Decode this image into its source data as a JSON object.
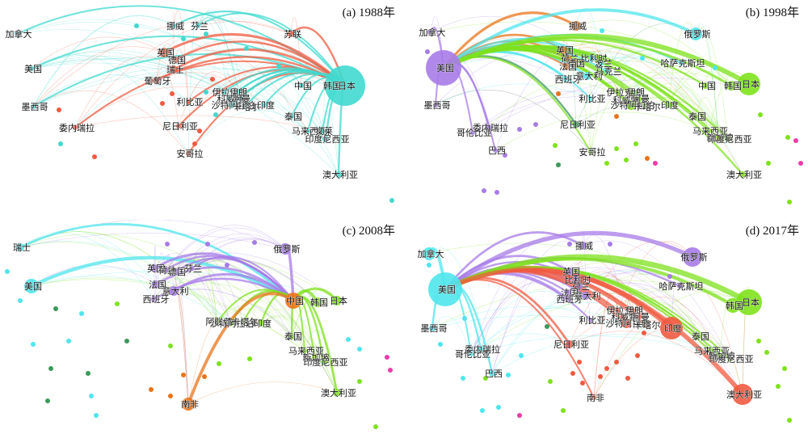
{
  "colors": {
    "teal": "#40d9cf",
    "red": "#f05a40",
    "orange": "#e8741a",
    "purple": "#a77be8",
    "green": "#7ee21c",
    "cyan": "#4fe6ec",
    "darkgreen": "#3a9a5a",
    "pink": "#ee3aa8"
  },
  "panels": [
    {
      "id": "a",
      "caption": "(a) 1988年",
      "nodes": [
        {
          "label": "加拿大",
          "col": "teal",
          "r": 3
        },
        {
          "label": "美国",
          "col": "teal",
          "r": 3
        },
        {
          "label": "墨西哥",
          "col": "teal",
          "r": 3
        },
        {
          "label": "委内瑞拉",
          "col": "red",
          "r": 3
        },
        {
          "label": "挪威",
          "col": "teal",
          "r": 3
        },
        {
          "label": "芬兰",
          "col": "teal",
          "r": 3
        },
        {
          "label": "苏联",
          "col": "red",
          "r": 4
        },
        {
          "label": "英国",
          "col": "red",
          "r": 6
        },
        {
          "label": "德国",
          "col": "red",
          "r": 4
        },
        {
          "label": "瑞士",
          "col": "red",
          "r": 5
        },
        {
          "label": "葡萄牙",
          "col": "red",
          "r": 4
        },
        {
          "label": "利比亚",
          "col": "red",
          "r": 3
        },
        {
          "label": "尼日利亚",
          "col": "red",
          "r": 3
        },
        {
          "label": "安哥拉",
          "col": "red",
          "r": 3
        },
        {
          "label": "伊拉克",
          "col": "teal",
          "r": 3
        },
        {
          "label": "伊朗",
          "col": "teal",
          "r": 3
        },
        {
          "label": "科威特",
          "col": "teal",
          "r": 3
        },
        {
          "label": "沙特阿拉伯",
          "col": "teal",
          "r": 4
        },
        {
          "label": "阿曼",
          "col": "teal",
          "r": 3
        },
        {
          "label": "卡塔尔",
          "col": "teal",
          "r": 3
        },
        {
          "label": "印度",
          "col": "teal",
          "r": 3
        },
        {
          "label": "中国",
          "col": "teal",
          "r": 3
        },
        {
          "label": "韩国",
          "col": "teal",
          "r": 4
        },
        {
          "label": "日本",
          "col": "teal",
          "r": 25
        },
        {
          "label": "泰国",
          "col": "teal",
          "r": 3
        },
        {
          "label": "马来西亚",
          "col": "teal",
          "r": 3
        },
        {
          "label": "文莱",
          "col": "teal",
          "r": 3
        },
        {
          "label": "印度尼西亚",
          "col": "teal",
          "r": 4
        },
        {
          "label": "澳大利亚",
          "col": "teal",
          "r": 4
        }
      ]
    },
    {
      "id": "b",
      "caption": "(b) 1998年",
      "nodes": [
        {
          "label": "加拿大",
          "col": "purple",
          "r": 4
        },
        {
          "label": "美国",
          "col": "purple",
          "r": 22
        },
        {
          "label": "墨西哥",
          "col": "purple",
          "r": 3
        },
        {
          "label": "哥伦比亚",
          "col": "purple",
          "r": 3
        },
        {
          "label": "委内瑞拉",
          "col": "purple",
          "r": 4
        },
        {
          "label": "巴西",
          "col": "purple",
          "r": 3
        },
        {
          "label": "挪威",
          "col": "orange",
          "r": 6
        },
        {
          "label": "英国",
          "col": "orange",
          "r": 5
        },
        {
          "label": "荷兰",
          "col": "orange",
          "r": 4
        },
        {
          "label": "德国",
          "col": "orange",
          "r": 4
        },
        {
          "label": "比利时",
          "col": "cyan",
          "r": 4
        },
        {
          "label": "波兰",
          "col": "cyan",
          "r": 3
        },
        {
          "label": "马克兰",
          "col": "cyan",
          "r": 3
        },
        {
          "label": "法国",
          "col": "orange",
          "r": 4
        },
        {
          "label": "西班牙",
          "col": "cyan",
          "r": 4
        },
        {
          "label": "意大利",
          "col": "cyan",
          "r": 5
        },
        {
          "label": "俄罗斯",
          "col": "cyan",
          "r": 8
        },
        {
          "label": "哈萨克斯坦",
          "col": "cyan",
          "r": 3
        },
        {
          "label": "利比亚",
          "col": "cyan",
          "r": 3
        },
        {
          "label": "尼日利亚",
          "col": "darkgreen",
          "r": 4
        },
        {
          "label": "安哥拉",
          "col": "green",
          "r": 3
        },
        {
          "label": "伊拉克",
          "col": "green",
          "r": 3
        },
        {
          "label": "伊朗",
          "col": "green",
          "r": 3
        },
        {
          "label": "科威特",
          "col": "green",
          "r": 3
        },
        {
          "label": "沙特阿拉伯",
          "col": "green",
          "r": 6
        },
        {
          "label": "阿曼",
          "col": "green",
          "r": 3
        },
        {
          "label": "卡塔尔",
          "col": "green",
          "r": 3
        },
        {
          "label": "印度",
          "col": "green",
          "r": 4
        },
        {
          "label": "中国",
          "col": "green",
          "r": 4
        },
        {
          "label": "韩国",
          "col": "green",
          "r": 6
        },
        {
          "label": "日本",
          "col": "green",
          "r": 14
        },
        {
          "label": "泰国",
          "col": "green",
          "r": 3
        },
        {
          "label": "马来西亚",
          "col": "green",
          "r": 3
        },
        {
          "label": "新加坡",
          "col": "green",
          "r": 3
        },
        {
          "label": "印度尼西亚",
          "col": "green",
          "r": 4
        },
        {
          "label": "澳大利亚",
          "col": "green",
          "r": 4
        }
      ]
    },
    {
      "id": "c",
      "caption": "(c) 2008年",
      "nodes": [
        {
          "label": "瑞士",
          "col": "cyan",
          "r": 5
        },
        {
          "label": "美国",
          "col": "cyan",
          "r": 9
        },
        {
          "label": "英国",
          "col": "purple",
          "r": 5
        },
        {
          "label": "荷兰",
          "col": "purple",
          "r": 4
        },
        {
          "label": "德国",
          "col": "purple",
          "r": 4
        },
        {
          "label": "芬兰",
          "col": "purple",
          "r": 3
        },
        {
          "label": "法国",
          "col": "purple",
          "r": 5
        },
        {
          "label": "意大利",
          "col": "purple",
          "r": 6
        },
        {
          "label": "西班牙",
          "col": "purple",
          "r": 4
        },
        {
          "label": "俄罗斯",
          "col": "purple",
          "r": 7
        },
        {
          "label": "阿联酋",
          "col": "green",
          "r": 3
        },
        {
          "label": "沙特阿拉伯",
          "col": "green",
          "r": 4
        },
        {
          "label": "卡塔尔",
          "col": "green",
          "r": 3
        },
        {
          "label": "印度",
          "col": "green",
          "r": 4
        },
        {
          "label": "中国",
          "col": "orange",
          "r": 10
        },
        {
          "label": "韩国",
          "col": "green",
          "r": 6
        },
        {
          "label": "日本",
          "col": "green",
          "r": 6
        },
        {
          "label": "泰国",
          "col": "green",
          "r": 4
        },
        {
          "label": "马来西亚",
          "col": "green",
          "r": 3
        },
        {
          "label": "新加坡",
          "col": "green",
          "r": 3
        },
        {
          "label": "印度尼西亚",
          "col": "green",
          "r": 4
        },
        {
          "label": "澳大利亚",
          "col": "green",
          "r": 5
        },
        {
          "label": "南非",
          "col": "orange",
          "r": 8
        }
      ]
    },
    {
      "id": "d",
      "caption": "(d) 2017年",
      "nodes": [
        {
          "label": "加拿大",
          "col": "cyan",
          "r": 8
        },
        {
          "label": "美国",
          "col": "cyan",
          "r": 21
        },
        {
          "label": "墨西哥",
          "col": "cyan",
          "r": 4
        },
        {
          "label": "委内瑞拉",
          "col": "cyan",
          "r": 4
        },
        {
          "label": "哥伦比亚",
          "col": "cyan",
          "r": 3
        },
        {
          "label": "巴西",
          "col": "cyan",
          "r": 4
        },
        {
          "label": "挪威",
          "col": "purple",
          "r": 5
        },
        {
          "label": "英国",
          "col": "purple",
          "r": 5
        },
        {
          "label": "比利时",
          "col": "purple",
          "r": 4
        },
        {
          "label": "荷兰",
          "col": "purple",
          "r": 4
        },
        {
          "label": "法国",
          "col": "purple",
          "r": 4
        },
        {
          "label": "西班牙",
          "col": "purple",
          "r": 4
        },
        {
          "label": "意大利",
          "col": "purple",
          "r": 5
        },
        {
          "label": "俄罗斯",
          "col": "purple",
          "r": 12
        },
        {
          "label": "哈萨克斯坦",
          "col": "purple",
          "r": 3
        },
        {
          "label": "利比亚",
          "col": "purple",
          "r": 3
        },
        {
          "label": "伊拉克",
          "col": "red",
          "r": 3
        },
        {
          "label": "伊朗",
          "col": "red",
          "r": 3
        },
        {
          "label": "科威特",
          "col": "red",
          "r": 3
        },
        {
          "label": "沙特阿拉伯",
          "col": "red",
          "r": 6
        },
        {
          "label": "阿曼",
          "col": "red",
          "r": 3
        },
        {
          "label": "卡塔尔",
          "col": "red",
          "r": 4
        },
        {
          "label": "印度",
          "col": "red",
          "r": 14
        },
        {
          "label": "尼日利亚",
          "col": "red",
          "r": 5
        },
        {
          "label": "韩国",
          "col": "green",
          "r": 9
        },
        {
          "label": "日本",
          "col": "green",
          "r": 16
        },
        {
          "label": "泰国",
          "col": "green",
          "r": 3
        },
        {
          "label": "马来西亚",
          "col": "green",
          "r": 3
        },
        {
          "label": "新加坡",
          "col": "green",
          "r": 3
        },
        {
          "label": "印度尼西亚",
          "col": "green",
          "r": 3
        },
        {
          "label": "澳大利亚",
          "col": "red",
          "r": 13
        },
        {
          "label": "南非",
          "col": "red",
          "r": 3
        }
      ]
    }
  ]
}
